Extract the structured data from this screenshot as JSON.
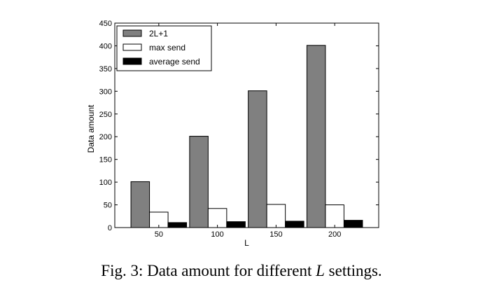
{
  "caption": {
    "prefix": "Fig. 3: Data amount for different ",
    "italic": "L",
    "suffix": " settings."
  },
  "chart_data": {
    "type": "bar",
    "categories": [
      "50",
      "100",
      "150",
      "200"
    ],
    "series": [
      {
        "name": "2L+1",
        "values": [
          101,
          201,
          301,
          401
        ],
        "color": "#808080"
      },
      {
        "name": "max send",
        "values": [
          34,
          42,
          51,
          50
        ],
        "color": "#ffffff"
      },
      {
        "name": "average send",
        "values": [
          11,
          13,
          14,
          16
        ],
        "color": "#000000"
      }
    ],
    "xlabel": "L",
    "ylabel": "Data amount",
    "ylim": [
      0,
      450
    ],
    "yticks": [
      0,
      50,
      100,
      150,
      200,
      250,
      300,
      350,
      400,
      450
    ],
    "grid": false,
    "legend_position": "top-left"
  }
}
